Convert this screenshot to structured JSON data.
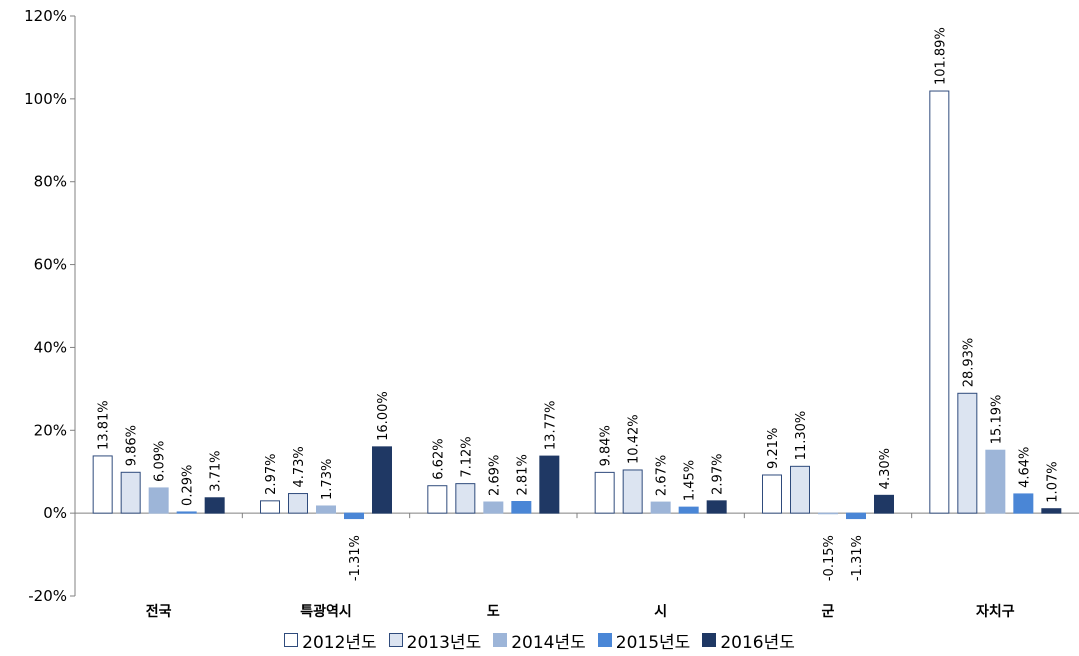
{
  "chart_data": {
    "type": "bar",
    "categories": [
      "전국",
      "특광역시",
      "도",
      "시",
      "군",
      "자치구"
    ],
    "series": [
      {
        "name": "2012년도",
        "values": [
          13.81,
          2.97,
          6.62,
          9.84,
          9.21,
          101.89
        ],
        "labels": [
          "13.81%",
          "2.97%",
          "6.62%",
          "9.84%",
          "9.21%",
          "101.89%"
        ],
        "color": "#ffffff",
        "stroke": "#2f4b7c"
      },
      {
        "name": "2013년도",
        "values": [
          9.86,
          4.73,
          7.12,
          10.42,
          11.3,
          28.93
        ],
        "labels": [
          "9.86%",
          "4.73%",
          "7.12%",
          "10.42%",
          "11.30%",
          "28.93%"
        ],
        "color": "#dce4f1",
        "stroke": "#2f4b7c"
      },
      {
        "name": "2014년도",
        "values": [
          6.09,
          1.73,
          2.69,
          2.67,
          -0.15,
          15.19
        ],
        "labels": [
          "6.09%",
          "1.73%",
          "2.69%",
          "2.67%",
          "-0.15%",
          "15.19%"
        ],
        "color": "#9db5d8",
        "stroke": "#9db5d8"
      },
      {
        "name": "2015년도",
        "values": [
          0.29,
          -1.31,
          2.81,
          1.45,
          -1.31,
          4.64
        ],
        "labels": [
          "0.29%",
          "-1.31%",
          "2.81%",
          "1.45%",
          "-1.31%",
          "4.64%"
        ],
        "color": "#4a86d6",
        "stroke": "#4a86d6"
      },
      {
        "name": "2016년도",
        "values": [
          3.71,
          16.0,
          13.77,
          2.97,
          4.3,
          1.07
        ],
        "labels": [
          "3.71%",
          "16.00%",
          "13.77%",
          "2.97%",
          "4.30%",
          "1.07%"
        ],
        "color": "#1f3864",
        "stroke": "#1f3864"
      }
    ],
    "y_ticks": [
      "120%",
      "100%",
      "80%",
      "60%",
      "40%",
      "20%",
      "0%",
      "-20%"
    ],
    "ylim": [
      -20,
      120
    ],
    "grid": false,
    "legend_position": "bottom"
  }
}
